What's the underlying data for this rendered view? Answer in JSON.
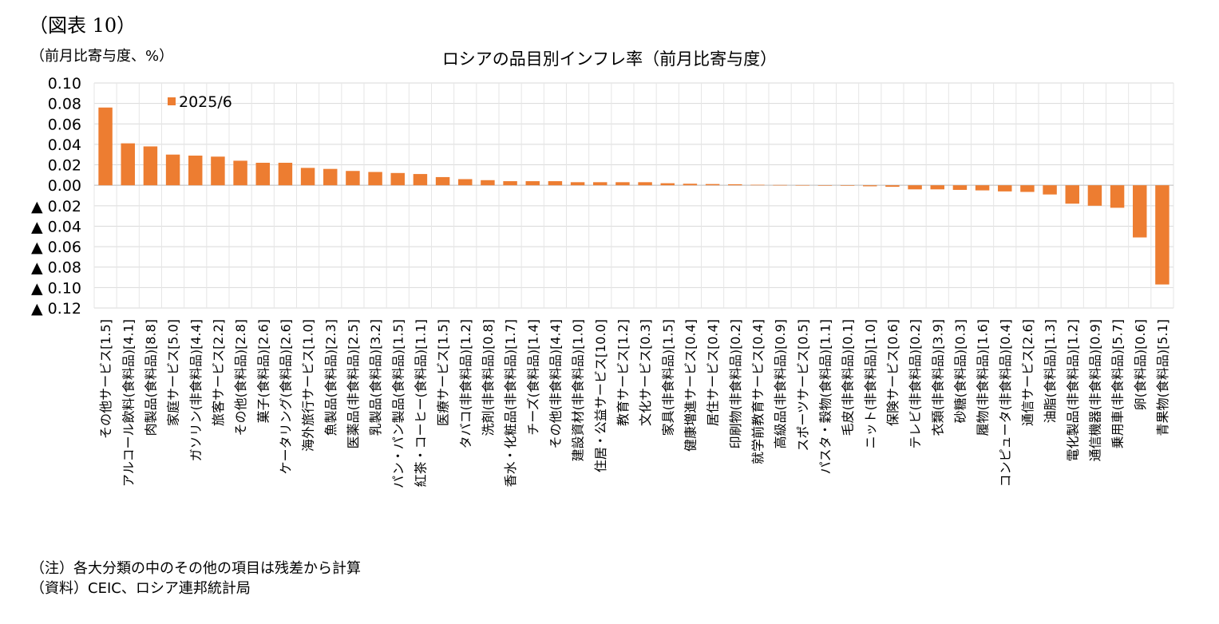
{
  "figure_label": "（図表 10）",
  "unit_label": "（前月比寄与度、%）",
  "notes": [
    "（注）各大分類の中のその他の項目は残差から計算",
    "（資料）CEIC、ロシア連邦統計局"
  ],
  "chart_data": {
    "type": "bar",
    "title": "ロシアの品目別インフレ率（前月比寄与度）",
    "legend": "2025/6",
    "legend_position": "top-left",
    "bar_color": "#ED7D31",
    "gridlines": true,
    "ylim": [
      -0.12,
      0.1
    ],
    "yticks": [
      {
        "value": 0.1,
        "label": "0.10"
      },
      {
        "value": 0.08,
        "label": "0.08"
      },
      {
        "value": 0.06,
        "label": "0.06"
      },
      {
        "value": 0.04,
        "label": "0.04"
      },
      {
        "value": 0.02,
        "label": "0.02"
      },
      {
        "value": 0.0,
        "label": "0.00"
      },
      {
        "value": -0.02,
        "label": "▲ 0.02"
      },
      {
        "value": -0.04,
        "label": "▲ 0.04"
      },
      {
        "value": -0.06,
        "label": "▲ 0.06"
      },
      {
        "value": -0.08,
        "label": "▲ 0.08"
      },
      {
        "value": -0.1,
        "label": "▲ 0.10"
      },
      {
        "value": -0.12,
        "label": "▲ 0.12"
      }
    ],
    "categories": [
      "その他サービス[1.5]",
      "アルコール飲料(食料品)[4.1]",
      "肉製品(食料品)[8.8]",
      "家庭サービス[5.0]",
      "ガソリン(非食料品)[4.4]",
      "旅客サービス[2.2]",
      "その他(食料品)[2.8]",
      "菓子(食料品)[2.6]",
      "ケータリング(食料品)[2.6]",
      "海外旅行サービス[1.0]",
      "魚製品(食料品)[2.3]",
      "医薬品(非食料品)[2.5]",
      "乳製品(食料品)[3.2]",
      "パン・パン製品(食料品)[1.5]",
      "紅茶・コーヒー(食料品)[1.1]",
      "医療サービス[1.5]",
      "タバコ(非食料品)[1.2]",
      "洗剤(非食料品)[0.8]",
      "香水・化粧品(非食料品)[1.7]",
      "チーズ(食料品)[1.4]",
      "その他(非食料品)[4.4]",
      "建設資材(非食料品)[1.0]",
      "住居・公益サービス[10.0]",
      "教育サービス[1.2]",
      "文化サービス[0.3]",
      "家具(非食料品)[1.5]",
      "健康増進サービス[0.4]",
      "居住サービス[0.4]",
      "印刷物(非食料品)[0.2]",
      "就学前教育サービス[0.4]",
      "高級品(非食料品)[0.9]",
      "スポーツサービス[0.5]",
      "パスタ・穀物(食料品)[1.1]",
      "毛皮(非食料品)[0.1]",
      "ニット(非食料品)[1.0]",
      "保険サービス[0.6]",
      "テレビ(非食料品)[0.2]",
      "衣類(非食料品)[3.9]",
      "砂糖(食料品)[0.3]",
      "履物(非食料品)[1.6]",
      "コンピュータ(非食料品)[0.4]",
      "通信サービス[2.6]",
      "油脂(食料品)[1.3]",
      "電化製品(非食料品)[1.2]",
      "通信機器(非食料品)[0.9]",
      "乗用車(非食料品)[5.7]",
      "卵(食料品)[0.6]",
      "青果物(食料品)[5.1]"
    ],
    "series": [
      {
        "name": "2025/6",
        "values": [
          0.076,
          0.041,
          0.038,
          0.03,
          0.029,
          0.028,
          0.024,
          0.022,
          0.022,
          0.017,
          0.016,
          0.014,
          0.013,
          0.012,
          0.011,
          0.008,
          0.006,
          0.005,
          0.004,
          0.004,
          0.004,
          0.003,
          0.003,
          0.003,
          0.003,
          0.002,
          0.0015,
          0.0012,
          0.001,
          0.0005,
          0.0003,
          0.0002,
          -0.0003,
          -0.0005,
          -0.001,
          -0.0015,
          -0.004,
          -0.004,
          -0.0045,
          -0.005,
          -0.006,
          -0.0065,
          -0.009,
          -0.018,
          -0.02,
          -0.022,
          -0.051,
          -0.097
        ]
      }
    ]
  }
}
